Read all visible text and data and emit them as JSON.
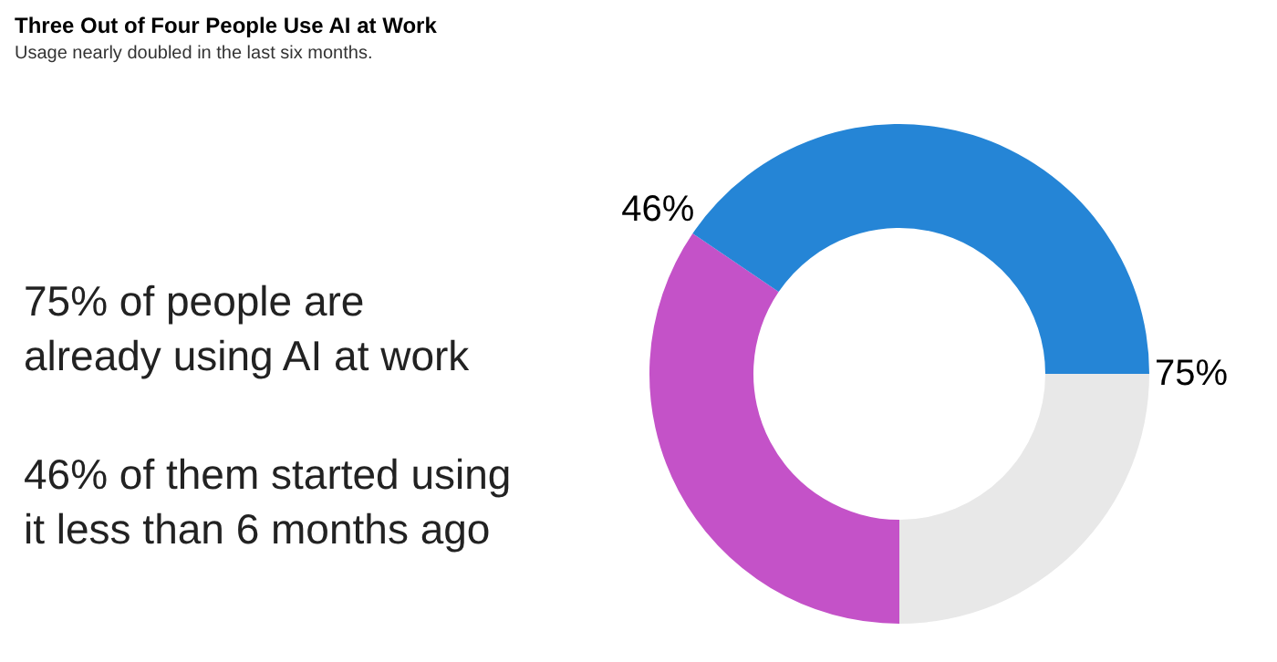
{
  "chart_data": {
    "type": "donut",
    "title": "Three Out of Four People Use AI at Work",
    "subtitle": "Usage nearly doubled in the last six months.",
    "categories": [
      null,
      null,
      null
    ],
    "values": [
      34.5,
      40.5,
      25
    ],
    "colors": [
      "#c452c8",
      "#2585d6",
      "#e8e8e8"
    ],
    "annotations": [
      "46%",
      "75%",
      "75% of people are\nalready using AI at work",
      "46% of them started using\nit less than 6 months ago"
    ]
  }
}
